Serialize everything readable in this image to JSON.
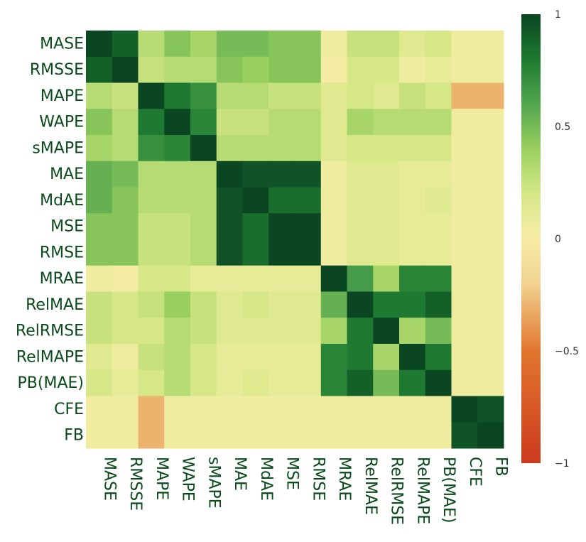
{
  "chart_data": {
    "type": "heatmap",
    "title": "",
    "xlabel": "",
    "ylabel": "",
    "labels": [
      "MASE",
      "RMSSE",
      "MAPE",
      "WAPE",
      "sMAPE",
      "MAE",
      "MdAE",
      "MSE",
      "RMSE",
      "MRAE",
      "RelMAE",
      "RelRMSE",
      "RelMAPE",
      "PB(MAE)",
      "CFE",
      "FB"
    ],
    "matrix": [
      [
        1.0,
        0.9,
        0.3,
        0.45,
        0.35,
        0.5,
        0.5,
        0.45,
        0.45,
        0.05,
        0.25,
        0.25,
        0.15,
        0.2,
        0.05,
        0.05
      ],
      [
        0.9,
        1.0,
        0.25,
        0.3,
        0.3,
        0.45,
        0.4,
        0.45,
        0.45,
        0.02,
        0.2,
        0.2,
        0.05,
        0.1,
        0.05,
        0.05
      ],
      [
        0.3,
        0.25,
        1.0,
        0.8,
        0.7,
        0.3,
        0.3,
        0.25,
        0.25,
        0.15,
        0.2,
        0.15,
        0.25,
        0.2,
        -0.3,
        -0.3
      ],
      [
        0.45,
        0.3,
        0.8,
        1.0,
        0.75,
        0.25,
        0.25,
        0.3,
        0.3,
        0.15,
        0.35,
        0.3,
        0.3,
        0.3,
        0.05,
        0.05
      ],
      [
        0.35,
        0.3,
        0.7,
        0.75,
        1.0,
        0.3,
        0.3,
        0.3,
        0.3,
        0.15,
        0.2,
        0.2,
        0.2,
        0.2,
        0.05,
        0.05
      ],
      [
        0.55,
        0.5,
        0.3,
        0.3,
        0.3,
        1.0,
        0.95,
        0.95,
        0.95,
        0.05,
        0.15,
        0.15,
        0.1,
        0.1,
        0.05,
        0.05
      ],
      [
        0.55,
        0.45,
        0.3,
        0.3,
        0.3,
        0.95,
        1.0,
        0.85,
        0.85,
        0.05,
        0.15,
        0.15,
        0.1,
        0.15,
        0.05,
        0.05
      ],
      [
        0.45,
        0.45,
        0.25,
        0.25,
        0.3,
        0.95,
        0.85,
        1.0,
        1.0,
        0.05,
        0.15,
        0.15,
        0.1,
        0.1,
        0.05,
        0.05
      ],
      [
        0.45,
        0.45,
        0.25,
        0.25,
        0.3,
        0.95,
        0.85,
        1.0,
        1.0,
        0.05,
        0.15,
        0.15,
        0.1,
        0.1,
        0.05,
        0.05
      ],
      [
        0.05,
        0.02,
        0.2,
        0.2,
        0.1,
        0.1,
        0.1,
        0.1,
        0.1,
        1.0,
        0.65,
        0.35,
        0.75,
        0.75,
        0.05,
        0.05
      ],
      [
        0.25,
        0.2,
        0.25,
        0.4,
        0.25,
        0.15,
        0.2,
        0.15,
        0.15,
        0.55,
        1.0,
        0.8,
        0.8,
        0.9,
        0.05,
        0.05
      ],
      [
        0.25,
        0.2,
        0.2,
        0.3,
        0.25,
        0.15,
        0.15,
        0.15,
        0.15,
        0.35,
        0.8,
        1.0,
        0.35,
        0.5,
        0.05,
        0.05
      ],
      [
        0.15,
        0.05,
        0.25,
        0.3,
        0.2,
        0.1,
        0.1,
        0.1,
        0.1,
        0.75,
        0.8,
        0.35,
        1.0,
        0.8,
        0.05,
        0.05
      ],
      [
        0.2,
        0.1,
        0.2,
        0.3,
        0.2,
        0.1,
        0.15,
        0.1,
        0.1,
        0.75,
        0.9,
        0.5,
        0.8,
        1.0,
        0.05,
        0.05
      ],
      [
        0.05,
        0.05,
        -0.3,
        0.05,
        0.05,
        0.05,
        0.05,
        0.05,
        0.05,
        0.05,
        0.05,
        0.05,
        0.05,
        0.05,
        1.0,
        0.95
      ],
      [
        0.05,
        0.05,
        -0.3,
        0.05,
        0.05,
        0.05,
        0.05,
        0.05,
        0.05,
        0.05,
        0.05,
        0.05,
        0.05,
        0.05,
        0.95,
        1.0
      ]
    ],
    "zlim": [
      -1,
      1
    ],
    "colorbar": {
      "ticks": [
        1,
        0.5,
        0,
        -0.5,
        -1
      ],
      "tick_labels": [
        "1",
        "0.5",
        "0",
        "−0.5",
        "−1"
      ]
    },
    "colorscale": [
      [
        -1.0,
        "#cc3a1e"
      ],
      [
        -0.5,
        "#e2762e"
      ],
      [
        -0.2,
        "#f1d28f"
      ],
      [
        0.0,
        "#f8eda6"
      ],
      [
        0.2,
        "#d5e788"
      ],
      [
        0.4,
        "#99cf5f"
      ],
      [
        0.6,
        "#52a64e"
      ],
      [
        0.8,
        "#1d7a30"
      ],
      [
        1.0,
        "#0b4622"
      ]
    ],
    "grid": false,
    "legend": "colorbar-right"
  }
}
